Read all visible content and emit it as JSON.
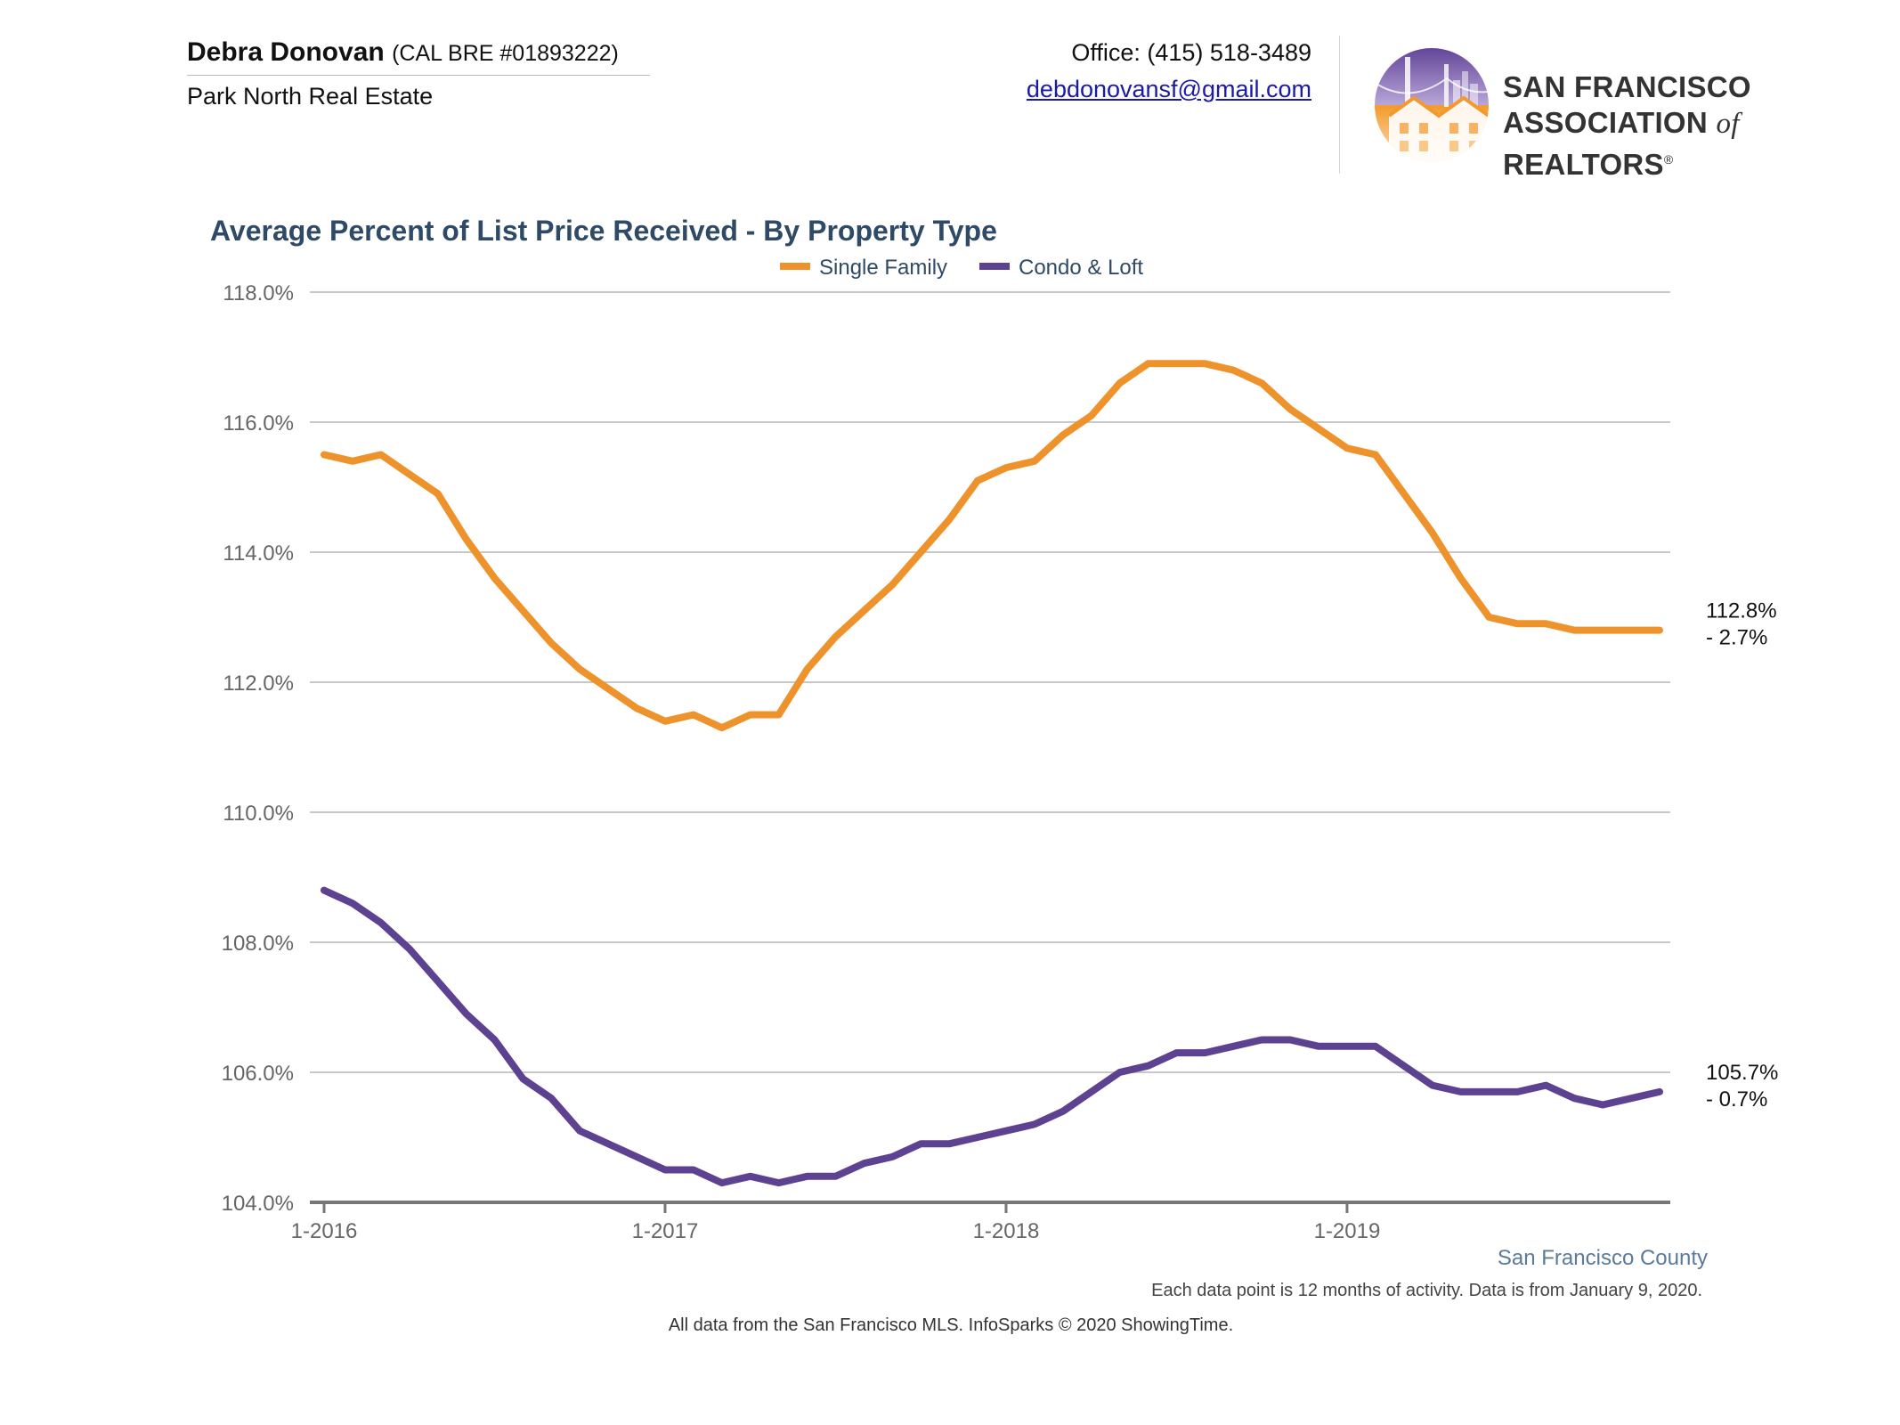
{
  "agent": {
    "name": "Debra Donovan",
    "license": "(CAL BRE #01893222)",
    "company": "Park North Real Estate"
  },
  "contact": {
    "office": "Office: (415) 518-3489",
    "email": "debdonovansf@gmail.com"
  },
  "logo": {
    "line1": "SAN FRANCISCO",
    "line2_a": "ASSOCIATION ",
    "line2_of": "of",
    "line2_b": " REALTORS",
    "reg": "®"
  },
  "footer": {
    "region": "San Francisco County",
    "note": "Each data point is 12 months of activity. Data is from January 9, 2020.",
    "source": "All data from the San Francisco MLS. InfoSparks © 2020 ShowingTime."
  },
  "colors": {
    "single_family": "#EE922B",
    "condo_loft": "#5C4290",
    "title": "#2E4A66",
    "region": "#5A7A9A"
  },
  "chart_data": {
    "type": "line",
    "title": "Average Percent of List Price Received - By Property Type",
    "ylim": [
      104,
      118
    ],
    "yticks": [
      104,
      106,
      108,
      110,
      112,
      114,
      116,
      118
    ],
    "ytick_labels": [
      "104.0%",
      "106.0%",
      "108.0%",
      "110.0%",
      "112.0%",
      "114.0%",
      "116.0%",
      "118.0%"
    ],
    "xtick_labels": [
      "1-2016",
      "1-2017",
      "1-2018",
      "1-2019"
    ],
    "x": [
      "1-2016",
      "2-2016",
      "3-2016",
      "4-2016",
      "5-2016",
      "6-2016",
      "7-2016",
      "8-2016",
      "9-2016",
      "10-2016",
      "11-2016",
      "12-2016",
      "1-2017",
      "2-2017",
      "3-2017",
      "4-2017",
      "5-2017",
      "6-2017",
      "7-2017",
      "8-2017",
      "9-2017",
      "10-2017",
      "11-2017",
      "12-2017",
      "1-2018",
      "2-2018",
      "3-2018",
      "4-2018",
      "5-2018",
      "6-2018",
      "7-2018",
      "8-2018",
      "9-2018",
      "10-2018",
      "11-2018",
      "12-2018",
      "1-2019",
      "2-2019",
      "3-2019",
      "4-2019",
      "5-2019",
      "6-2019",
      "7-2019",
      "8-2019",
      "9-2019",
      "10-2019",
      "11-2019",
      "12-2019"
    ],
    "legend_position": "top-center",
    "grid": "horizontal",
    "series": [
      {
        "name": "Single Family",
        "values": [
          115.5,
          115.4,
          115.5,
          115.2,
          114.9,
          114.2,
          113.6,
          113.1,
          112.6,
          112.2,
          111.9,
          111.6,
          111.4,
          111.5,
          111.3,
          111.5,
          111.5,
          112.2,
          112.7,
          113.1,
          113.5,
          114.0,
          114.5,
          115.1,
          115.3,
          115.4,
          115.8,
          116.1,
          116.6,
          116.9,
          116.9,
          116.9,
          116.8,
          116.6,
          116.2,
          115.9,
          115.6,
          115.5,
          114.9,
          114.3,
          113.6,
          113.0,
          112.9,
          112.9,
          112.8,
          112.8,
          112.8,
          112.8
        ],
        "end_label": "112.8%",
        "end_change": "- 2.7%"
      },
      {
        "name": "Condo & Loft",
        "values": [
          108.8,
          108.6,
          108.3,
          107.9,
          107.4,
          106.9,
          106.5,
          105.9,
          105.6,
          105.1,
          104.9,
          104.7,
          104.5,
          104.5,
          104.3,
          104.4,
          104.3,
          104.4,
          104.4,
          104.6,
          104.7,
          104.9,
          104.9,
          105.0,
          105.1,
          105.2,
          105.4,
          105.7,
          106.0,
          106.1,
          106.3,
          106.3,
          106.4,
          106.5,
          106.5,
          106.4,
          106.4,
          106.4,
          106.1,
          105.8,
          105.7,
          105.7,
          105.7,
          105.8,
          105.6,
          105.5,
          105.6,
          105.7
        ],
        "end_label": "105.7%",
        "end_change": "- 0.7%"
      }
    ]
  }
}
